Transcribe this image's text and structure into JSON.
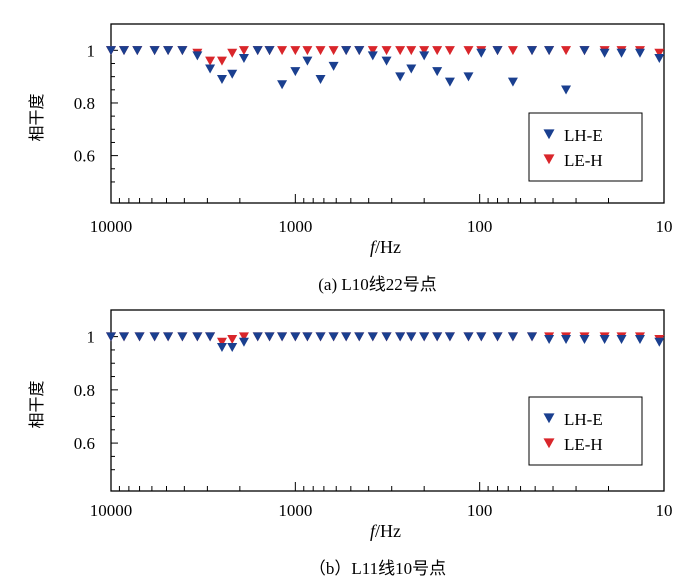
{
  "chart_data": [
    {
      "type": "scatter",
      "caption": "(a) L10线22号点",
      "xlabel": "f/Hz",
      "ylabel": "相干度",
      "x_scale": "log",
      "x_reversed": true,
      "xlim": [
        10000,
        10
      ],
      "ylim": [
        0.42,
        1.1
      ],
      "x_ticks": [
        10000,
        1000,
        100,
        10
      ],
      "x_tick_labels": [
        "10000",
        "1000",
        "100",
        "10"
      ],
      "y_ticks": [
        0.6,
        0.8,
        1
      ],
      "y_tick_labels": [
        "0.6",
        "0.8",
        "1"
      ],
      "legend_position": "lower-right",
      "series": [
        {
          "name": "LH-E",
          "color": "#1a3f8f",
          "marker": "triangle-down",
          "points": [
            [
              10000,
              1.0
            ],
            [
              8500,
              1.0
            ],
            [
              7200,
              1.0
            ],
            [
              5800,
              1.0
            ],
            [
              4900,
              1.0
            ],
            [
              4100,
              1.0
            ],
            [
              3400,
              0.98
            ],
            [
              2900,
              0.93
            ],
            [
              2500,
              0.89
            ],
            [
              2200,
              0.91
            ],
            [
              1900,
              0.97
            ],
            [
              1600,
              1.0
            ],
            [
              1380,
              1.0
            ],
            [
              1180,
              0.87
            ],
            [
              1000,
              0.92
            ],
            [
              860,
              0.96
            ],
            [
              730,
              0.89
            ],
            [
              620,
              0.94
            ],
            [
              530,
              1.0
            ],
            [
              450,
              1.0
            ],
            [
              380,
              0.98
            ],
            [
              320,
              0.96
            ],
            [
              270,
              0.9
            ],
            [
              235,
              0.93
            ],
            [
              200,
              0.98
            ],
            [
              170,
              0.92
            ],
            [
              145,
              0.88
            ],
            [
              115,
              0.9
            ],
            [
              98,
              0.99
            ],
            [
              80,
              1.0
            ],
            [
              66,
              0.88
            ],
            [
              52,
              1.0
            ],
            [
              42,
              1.0
            ],
            [
              34,
              0.85
            ],
            [
              27,
              1.0
            ],
            [
              21,
              0.99
            ],
            [
              17,
              0.99
            ],
            [
              13.5,
              0.99
            ],
            [
              10.6,
              0.97
            ]
          ]
        },
        {
          "name": "LE-H",
          "color": "#d9262b",
          "marker": "triangle-down",
          "points": [
            [
              10000,
              1.0
            ],
            [
              8500,
              1.0
            ],
            [
              7200,
              1.0
            ],
            [
              5800,
              1.0
            ],
            [
              4900,
              1.0
            ],
            [
              4100,
              1.0
            ],
            [
              3400,
              0.99
            ],
            [
              2900,
              0.96
            ],
            [
              2500,
              0.96
            ],
            [
              2200,
              0.99
            ],
            [
              1900,
              1.0
            ],
            [
              1600,
              1.0
            ],
            [
              1380,
              1.0
            ],
            [
              1180,
              1.0
            ],
            [
              1000,
              1.0
            ],
            [
              860,
              1.0
            ],
            [
              730,
              1.0
            ],
            [
              620,
              1.0
            ],
            [
              530,
              1.0
            ],
            [
              450,
              1.0
            ],
            [
              380,
              1.0
            ],
            [
              320,
              1.0
            ],
            [
              270,
              1.0
            ],
            [
              235,
              1.0
            ],
            [
              200,
              1.0
            ],
            [
              170,
              1.0
            ],
            [
              145,
              1.0
            ],
            [
              115,
              1.0
            ],
            [
              98,
              1.0
            ],
            [
              80,
              1.0
            ],
            [
              66,
              1.0
            ],
            [
              52,
              1.0
            ],
            [
              42,
              1.0
            ],
            [
              34,
              1.0
            ],
            [
              27,
              1.0
            ],
            [
              21,
              1.0
            ],
            [
              17,
              1.0
            ],
            [
              13.5,
              1.0
            ],
            [
              10.6,
              0.99
            ]
          ]
        }
      ]
    },
    {
      "type": "scatter",
      "caption": "（b）L11线10号点",
      "xlabel": "f/Hz",
      "ylabel": "相干度",
      "x_scale": "log",
      "x_reversed": true,
      "xlim": [
        10000,
        10
      ],
      "ylim": [
        0.42,
        1.1
      ],
      "x_ticks": [
        10000,
        1000,
        100,
        10
      ],
      "x_tick_labels": [
        "10000",
        "1000",
        "100",
        "10"
      ],
      "y_ticks": [
        0.6,
        0.8,
        1
      ],
      "y_tick_labels": [
        "0.6",
        "0.8",
        "1"
      ],
      "legend_position": "lower-right",
      "series": [
        {
          "name": "LH-E",
          "color": "#1a3f8f",
          "marker": "triangle-down",
          "points": [
            [
              10000,
              1.0
            ],
            [
              8500,
              1.0
            ],
            [
              7000,
              1.0
            ],
            [
              5800,
              1.0
            ],
            [
              4900,
              1.0
            ],
            [
              4100,
              1.0
            ],
            [
              3400,
              1.0
            ],
            [
              2900,
              1.0
            ],
            [
              2500,
              0.96
            ],
            [
              2200,
              0.96
            ],
            [
              1900,
              0.98
            ],
            [
              1600,
              1.0
            ],
            [
              1380,
              1.0
            ],
            [
              1180,
              1.0
            ],
            [
              1000,
              1.0
            ],
            [
              860,
              1.0
            ],
            [
              730,
              1.0
            ],
            [
              620,
              1.0
            ],
            [
              530,
              1.0
            ],
            [
              450,
              1.0
            ],
            [
              380,
              1.0
            ],
            [
              320,
              1.0
            ],
            [
              270,
              1.0
            ],
            [
              235,
              1.0
            ],
            [
              200,
              1.0
            ],
            [
              170,
              1.0
            ],
            [
              145,
              1.0
            ],
            [
              115,
              1.0
            ],
            [
              98,
              1.0
            ],
            [
              80,
              1.0
            ],
            [
              66,
              1.0
            ],
            [
              52,
              1.0
            ],
            [
              42,
              0.99
            ],
            [
              34,
              0.99
            ],
            [
              27,
              0.99
            ],
            [
              21,
              0.99
            ],
            [
              17,
              0.99
            ],
            [
              13.5,
              0.99
            ],
            [
              10.6,
              0.98
            ]
          ]
        },
        {
          "name": "LE-H",
          "color": "#d9262b",
          "marker": "triangle-down",
          "points": [
            [
              10000,
              1.0
            ],
            [
              8500,
              1.0
            ],
            [
              7000,
              1.0
            ],
            [
              5800,
              1.0
            ],
            [
              4900,
              1.0
            ],
            [
              4100,
              1.0
            ],
            [
              3400,
              1.0
            ],
            [
              2900,
              1.0
            ],
            [
              2500,
              0.98
            ],
            [
              2200,
              0.99
            ],
            [
              1900,
              1.0
            ],
            [
              1600,
              1.0
            ],
            [
              1380,
              1.0
            ],
            [
              1180,
              1.0
            ],
            [
              1000,
              1.0
            ],
            [
              860,
              1.0
            ],
            [
              730,
              1.0
            ],
            [
              620,
              1.0
            ],
            [
              530,
              1.0
            ],
            [
              450,
              1.0
            ],
            [
              380,
              1.0
            ],
            [
              320,
              1.0
            ],
            [
              270,
              1.0
            ],
            [
              235,
              1.0
            ],
            [
              200,
              1.0
            ],
            [
              170,
              1.0
            ],
            [
              145,
              1.0
            ],
            [
              115,
              1.0
            ],
            [
              98,
              1.0
            ],
            [
              80,
              1.0
            ],
            [
              66,
              1.0
            ],
            [
              52,
              1.0
            ],
            [
              42,
              1.0
            ],
            [
              34,
              1.0
            ],
            [
              27,
              1.0
            ],
            [
              21,
              1.0
            ],
            [
              17,
              1.0
            ],
            [
              13.5,
              1.0
            ],
            [
              10.6,
              0.99
            ]
          ]
        }
      ]
    }
  ]
}
